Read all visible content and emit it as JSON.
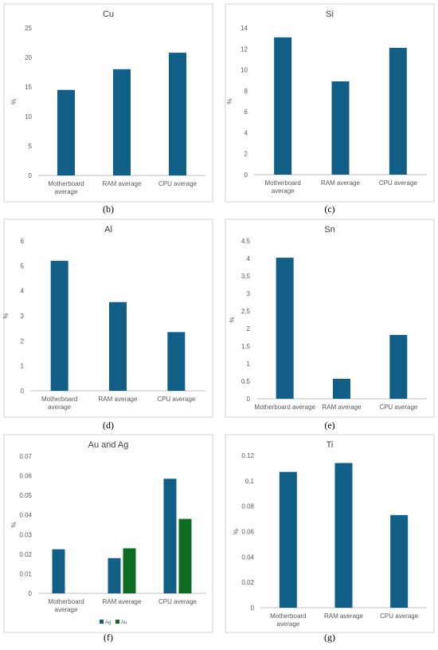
{
  "colors": {
    "ag": "#115f87",
    "au": "#0e6b22",
    "axis": "#bfbfbf",
    "text": "#595959"
  },
  "chart_data": [
    {
      "type": "bar",
      "panel": "(b)",
      "title": "Cu",
      "ylabel": "%",
      "categories": [
        [
          "Motherboard",
          "average"
        ],
        [
          "RAM average"
        ],
        [
          "CPU average"
        ]
      ],
      "ylim": [
        0,
        25
      ],
      "yticks": [
        0,
        5,
        10,
        15,
        20,
        25
      ],
      "series": [
        {
          "values": [
            14.5,
            18.0,
            20.8
          ]
        }
      ]
    },
    {
      "type": "bar",
      "panel": "(c)",
      "title": "Si",
      "ylabel": "%",
      "categories": [
        [
          "Motherboard",
          "average"
        ],
        [
          "RAM average"
        ],
        [
          "CPU average"
        ]
      ],
      "ylim": [
        0,
        14
      ],
      "yticks": [
        0,
        2,
        4,
        6,
        8,
        10,
        12,
        14
      ],
      "series": [
        {
          "values": [
            13.1,
            8.9,
            12.1
          ]
        }
      ]
    },
    {
      "type": "bar",
      "panel": "(d)",
      "title": "Al",
      "ylabel": "%",
      "categories": [
        [
          "Motherboard",
          "average"
        ],
        [
          "RAM average"
        ],
        [
          "CPU average"
        ]
      ],
      "ylim": [
        0,
        6
      ],
      "yticks": [
        0,
        1,
        2,
        3,
        4,
        5,
        6
      ],
      "series": [
        {
          "values": [
            5.2,
            3.55,
            2.35
          ]
        }
      ]
    },
    {
      "type": "bar",
      "panel": "(e)",
      "title": "Sn",
      "ylabel": "%",
      "categories": [
        [
          "Motherboard average"
        ],
        [
          "RAM average"
        ],
        [
          "CPU average"
        ]
      ],
      "ylim": [
        0,
        4.5
      ],
      "yticks": [
        0,
        0.5,
        1,
        1.5,
        2,
        2.5,
        3,
        3.5,
        4,
        4.5
      ],
      "series": [
        {
          "values": [
            4.02,
            0.57,
            1.82
          ]
        }
      ]
    },
    {
      "type": "bar",
      "panel": "(f)",
      "title": "Au and Ag",
      "ylabel": "%",
      "categories": [
        [
          "Motherboard",
          "average"
        ],
        [
          "RAM average"
        ],
        [
          "CPU average"
        ]
      ],
      "ylim": [
        0,
        0.07
      ],
      "yticks": [
        0,
        0.01,
        0.02,
        0.03,
        0.04,
        0.05,
        0.06,
        0.07
      ],
      "legend": "bottom",
      "series": [
        {
          "name": "Ag",
          "values": [
            0.0225,
            0.018,
            0.0585
          ]
        },
        {
          "name": "Au",
          "values": [
            0,
            0.023,
            0.038
          ]
        }
      ]
    },
    {
      "type": "bar",
      "panel": "(g)",
      "title": "Ti",
      "ylabel": "%",
      "categories": [
        [
          "Motherboard",
          "average"
        ],
        [
          "RAM average"
        ],
        [
          "CPU average"
        ]
      ],
      "ylim": [
        0,
        0.12
      ],
      "yticks": [
        0,
        0.02,
        0.04,
        0.06,
        0.08,
        0.1,
        0.12
      ],
      "series": [
        {
          "values": [
            0.107,
            0.114,
            0.073
          ]
        }
      ]
    }
  ]
}
